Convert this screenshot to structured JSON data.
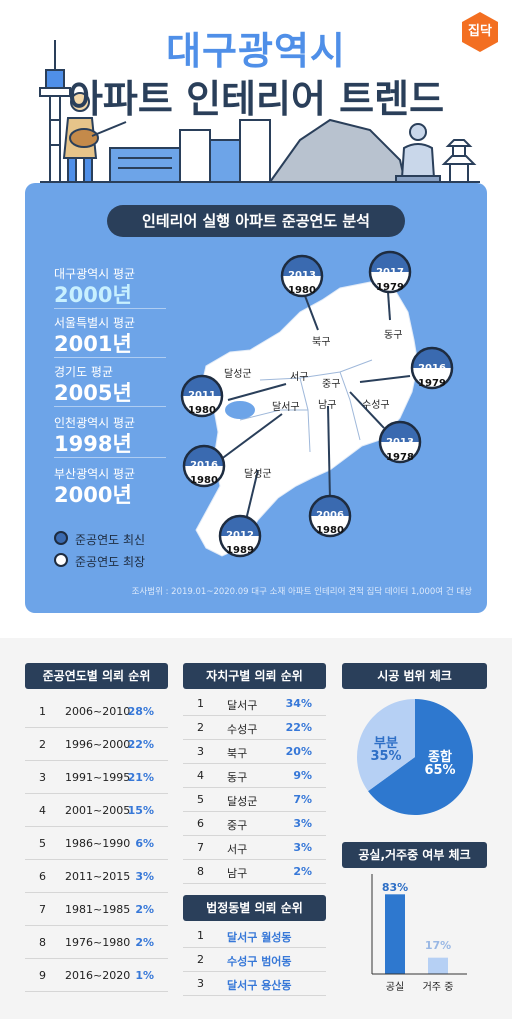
{
  "header": {
    "title_line1": "대구광역시",
    "title_line2": "아파트 인테리어 트렌드",
    "logo_text": "집닥"
  },
  "map_section": {
    "title": "인테리어 실행 아파트 준공연도 분석",
    "averages": [
      {
        "label": "대구광역시 평균",
        "value": "2000년"
      },
      {
        "label": "서울특별시 평균",
        "value": "2001년"
      },
      {
        "label": "경기도 평균",
        "value": "2005년"
      },
      {
        "label": "인천광역시 평균",
        "value": "1998년"
      },
      {
        "label": "부산광역시 평균",
        "value": "2000년"
      }
    ],
    "legend": [
      {
        "label": "준공연도 최신"
      },
      {
        "label": "준공연도 최장"
      }
    ],
    "districts": [
      "북구",
      "동구",
      "서구",
      "중구",
      "달성군",
      "달서구",
      "남구",
      "수성구",
      "달성군"
    ],
    "pins": [
      {
        "newest": "2013",
        "oldest": "1980"
      },
      {
        "newest": "2017",
        "oldest": "1979"
      },
      {
        "newest": "2016",
        "oldest": "1979"
      },
      {
        "newest": "2011",
        "oldest": "1980"
      },
      {
        "newest": "2013",
        "oldest": "1978"
      },
      {
        "newest": "2016",
        "oldest": "1980"
      },
      {
        "newest": "2006",
        "oldest": "1980"
      },
      {
        "newest": "2012",
        "oldest": "1989"
      }
    ],
    "survey_note": "조사범위 : 2019.01~2020.09 대구 소재 아파트 인테리어 견적 집닥 데이터 1,000여 건 대상",
    "colors": {
      "panel": "#6da4e8",
      "newest": "#3a6ab0",
      "oldest": "#ffffff",
      "land": "#ffffff"
    }
  },
  "year_ranking": {
    "title": "준공연도별 의뢰 순위",
    "rows": [
      {
        "rank": "1",
        "range": "2006~2010",
        "pct": "28%"
      },
      {
        "rank": "2",
        "range": "1996~2000",
        "pct": "22%"
      },
      {
        "rank": "3",
        "range": "1991~1995",
        "pct": "21%"
      },
      {
        "rank": "4",
        "range": "2001~2005",
        "pct": "15%"
      },
      {
        "rank": "5",
        "range": "1986~1990",
        "pct": "6%"
      },
      {
        "rank": "6",
        "range": "2011~2015",
        "pct": "3%"
      },
      {
        "rank": "7",
        "range": "1981~1985",
        "pct": "2%"
      },
      {
        "rank": "8",
        "range": "1976~1980",
        "pct": "2%"
      },
      {
        "rank": "9",
        "range": "2016~2020",
        "pct": "1%"
      }
    ]
  },
  "district_ranking": {
    "title": "자치구별 의뢰 순위",
    "rows": [
      {
        "rank": "1",
        "name": "달서구",
        "pct": "34%"
      },
      {
        "rank": "2",
        "name": "수성구",
        "pct": "22%"
      },
      {
        "rank": "3",
        "name": "북구",
        "pct": "20%"
      },
      {
        "rank": "4",
        "name": "동구",
        "pct": "9%"
      },
      {
        "rank": "5",
        "name": "달성군",
        "pct": "7%"
      },
      {
        "rank": "6",
        "name": "중구",
        "pct": "3%"
      },
      {
        "rank": "7",
        "name": "서구",
        "pct": "3%"
      },
      {
        "rank": "8",
        "name": "남구",
        "pct": "2%"
      }
    ]
  },
  "dong_ranking": {
    "title": "법정동별 의뢰 순위",
    "rows": [
      {
        "rank": "1",
        "name": "달서구 월성동"
      },
      {
        "rank": "2",
        "name": "수성구 범어동"
      },
      {
        "rank": "3",
        "name": "달서구 용산동"
      }
    ]
  },
  "chart_data": [
    {
      "type": "pie",
      "title": "시공 범위 체크",
      "slices": [
        {
          "label": "종합",
          "value": 65,
          "display": "65%",
          "color": "#2e78cf"
        },
        {
          "label": "부분",
          "value": 35,
          "display": "35%",
          "color": "#b6d0f4"
        }
      ]
    },
    {
      "type": "bar",
      "title": "공실,거주중 여부 체크",
      "categories": [
        "공실",
        "거주 중"
      ],
      "values": [
        83,
        17
      ],
      "display": [
        "83%",
        "17%"
      ],
      "colors": [
        "#2e78cf",
        "#b6d0f4"
      ],
      "ylim": [
        0,
        100
      ]
    }
  ]
}
